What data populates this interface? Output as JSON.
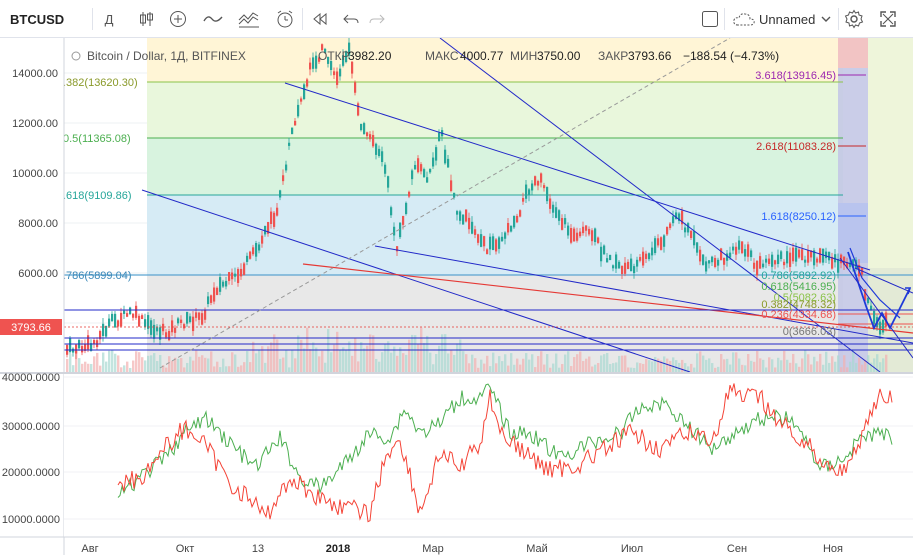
{
  "toolbar": {
    "symbol": "BTCUSD",
    "interval": "Д",
    "layout_name": "Unnamed"
  },
  "legend": {
    "title": "Bitcoin / Dollar, 1Д, BITFINEX",
    "open_label": "ОТКР",
    "open_value": "3982.20",
    "high_label": "МАКС",
    "high_value": "4000.77",
    "low_label": "МИН",
    "low_value": "3750.00",
    "close_label": "ЗАКР",
    "close_value": "3793.66",
    "change": "−188.54 (−4.73%)"
  },
  "price_axis": [
    "14000.00",
    "12000.00",
    "10000.00",
    "8000.00",
    "6000.00"
  ],
  "current_price": "3793.66",
  "time_axis": [
    "Авг",
    "Окт",
    "13",
    "2018",
    "Мар",
    "Май",
    "Июл",
    "Сен",
    "Ноя"
  ],
  "fib_left": [
    ".382(13620.30)",
    "0.5(11365.08)",
    ".618(9109.86)",
    ".786(5899.04)"
  ],
  "fib_right": [
    "3.618(13916.45)",
    "2.618(11083.28)",
    "1.618(8250.12)",
    "0.786(5892.92)",
    "0.618(5416.95)",
    "0.5(5082.63)",
    "0.382(4748.32)",
    "0.236(4334.68)",
    "0(3666.03)"
  ],
  "indicator_axis": [
    "40000.0000",
    "30000.0000",
    "20000.0000",
    "10000.0000"
  ],
  "colors": {
    "up": "#26a69a",
    "down": "#ef5350",
    "line_green": "#4caf50",
    "line_red": "#f44336",
    "trend": "#2229c8"
  }
}
